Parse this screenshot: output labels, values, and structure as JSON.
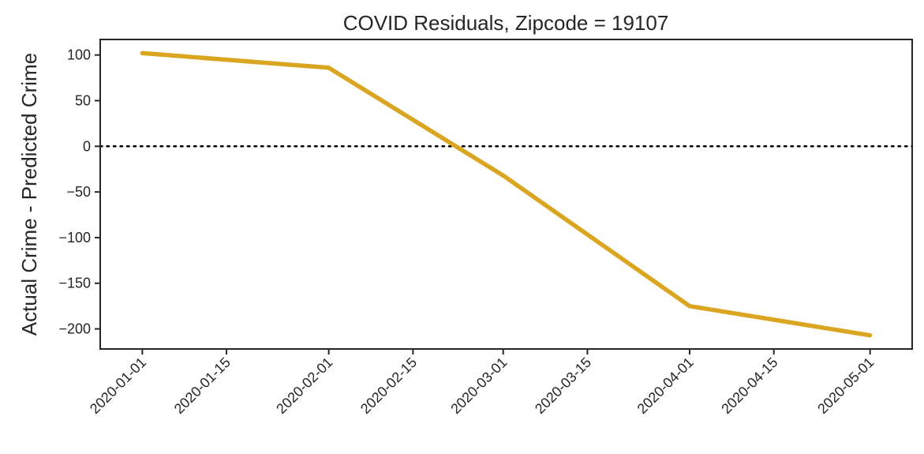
{
  "chart_data": {
    "type": "line",
    "title": "COVID Residuals, Zipcode = 19107",
    "xlabel": "",
    "ylabel": "Actual Crime - Predicted Crime",
    "x": [
      "2020-01-01",
      "2020-02-01",
      "2020-03-01",
      "2020-04-01",
      "2020-05-01"
    ],
    "series": [
      {
        "values": [
          102,
          86,
          -32,
          -175,
          -207
        ],
        "color": "#DAA520"
      }
    ],
    "xticks": [
      "2020-01-01",
      "2020-01-15",
      "2020-02-01",
      "2020-02-15",
      "2020-03-01",
      "2020-03-15",
      "2020-04-01",
      "2020-04-15",
      "2020-05-01"
    ],
    "yticks": [
      100,
      50,
      0,
      -50,
      -100,
      -150,
      -200
    ],
    "ylim": [
      -222,
      117
    ],
    "xlim": [
      "2019-12-25",
      "2020-05-08"
    ],
    "reference_line": {
      "y": 0,
      "style": "dotted",
      "color": "#000000"
    },
    "grid": false,
    "legend": "none"
  }
}
